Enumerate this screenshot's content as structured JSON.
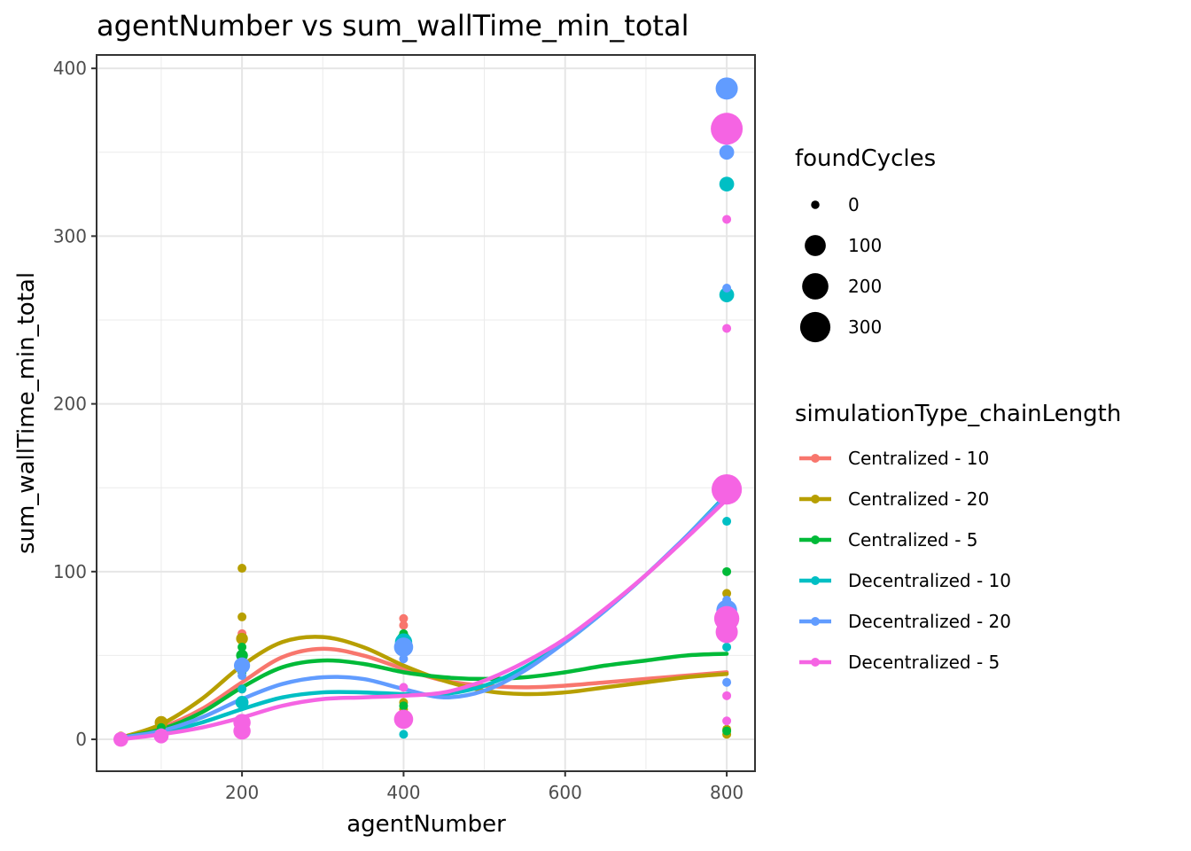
{
  "chart_data": {
    "type": "scatter",
    "title": "agentNumber  vs  sum_wallTime_min_total",
    "xlabel": "agentNumber",
    "ylabel": "sum_wallTime_min_total",
    "xlim": [
      20,
      835
    ],
    "ylim": [
      -19,
      408
    ],
    "x_ticks": [
      200,
      400,
      600,
      800
    ],
    "y_ticks": [
      0,
      100,
      200,
      300,
      400
    ],
    "x_tick_labels": [
      "200",
      "400",
      "600",
      "800"
    ],
    "y_tick_labels": [
      "0",
      "100",
      "200",
      "300",
      "400"
    ],
    "grid": true,
    "legend_position": "right",
    "size_legend": {
      "title": "foundCycles",
      "entries": [
        {
          "label": "0",
          "value": 0
        },
        {
          "label": "100",
          "value": 100
        },
        {
          "label": "200",
          "value": 200
        },
        {
          "label": "300",
          "value": 300
        }
      ]
    },
    "color_legend": {
      "title": "simulationType_chainLength"
    },
    "series": [
      {
        "name": "Centralized - 10",
        "color": "#F8766D",
        "points": [
          {
            "x": 50,
            "y": 1,
            "foundCycles": 0
          },
          {
            "x": 100,
            "y": 5,
            "foundCycles": 0
          },
          {
            "x": 200,
            "y": 63,
            "foundCycles": 0
          },
          {
            "x": 200,
            "y": 45,
            "foundCycles": 10
          },
          {
            "x": 200,
            "y": 30,
            "foundCycles": 0
          },
          {
            "x": 400,
            "y": 72,
            "foundCycles": 0
          },
          {
            "x": 400,
            "y": 68,
            "foundCycles": 0
          },
          {
            "x": 400,
            "y": 15,
            "foundCycles": 0
          },
          {
            "x": 800,
            "y": 65,
            "foundCycles": 0
          },
          {
            "x": 800,
            "y": 62,
            "foundCycles": 20
          }
        ],
        "trend": [
          [
            50,
            1
          ],
          [
            100,
            7
          ],
          [
            150,
            18
          ],
          [
            200,
            34
          ],
          [
            250,
            49
          ],
          [
            300,
            54
          ],
          [
            350,
            50
          ],
          [
            400,
            42
          ],
          [
            450,
            35
          ],
          [
            500,
            32
          ],
          [
            550,
            31
          ],
          [
            600,
            32
          ],
          [
            650,
            34
          ],
          [
            700,
            36
          ],
          [
            750,
            38
          ],
          [
            800,
            40
          ]
        ]
      },
      {
        "name": "Centralized - 20",
        "color": "#B79F00",
        "points": [
          {
            "x": 50,
            "y": 2,
            "foundCycles": 0
          },
          {
            "x": 100,
            "y": 10,
            "foundCycles": 10
          },
          {
            "x": 200,
            "y": 102,
            "foundCycles": 0
          },
          {
            "x": 200,
            "y": 73,
            "foundCycles": 0
          },
          {
            "x": 200,
            "y": 60,
            "foundCycles": 5
          },
          {
            "x": 400,
            "y": 22,
            "foundCycles": 0
          },
          {
            "x": 400,
            "y": 18,
            "foundCycles": 0
          },
          {
            "x": 800,
            "y": 87,
            "foundCycles": 0
          },
          {
            "x": 800,
            "y": 68,
            "foundCycles": 0
          },
          {
            "x": 800,
            "y": 6,
            "foundCycles": 0
          },
          {
            "x": 800,
            "y": 3,
            "foundCycles": 0
          }
        ],
        "trend": [
          [
            50,
            1
          ],
          [
            100,
            9
          ],
          [
            150,
            24
          ],
          [
            200,
            44
          ],
          [
            250,
            58
          ],
          [
            300,
            61
          ],
          [
            350,
            55
          ],
          [
            400,
            44
          ],
          [
            450,
            35
          ],
          [
            500,
            29
          ],
          [
            550,
            27
          ],
          [
            600,
            28
          ],
          [
            650,
            31
          ],
          [
            700,
            34
          ],
          [
            750,
            37
          ],
          [
            800,
            39
          ]
        ]
      },
      {
        "name": "Centralized - 5",
        "color": "#00BA38",
        "points": [
          {
            "x": 50,
            "y": 1,
            "foundCycles": 0
          },
          {
            "x": 100,
            "y": 7,
            "foundCycles": 0
          },
          {
            "x": 200,
            "y": 55,
            "foundCycles": 0
          },
          {
            "x": 200,
            "y": 50,
            "foundCycles": 5
          },
          {
            "x": 200,
            "y": 40,
            "foundCycles": 0
          },
          {
            "x": 400,
            "y": 63,
            "foundCycles": 0
          },
          {
            "x": 400,
            "y": 60,
            "foundCycles": 10
          },
          {
            "x": 400,
            "y": 20,
            "foundCycles": 0
          },
          {
            "x": 800,
            "y": 100,
            "foundCycles": 0
          },
          {
            "x": 800,
            "y": 67,
            "foundCycles": 40
          },
          {
            "x": 800,
            "y": 5,
            "foundCycles": 0
          }
        ],
        "trend": [
          [
            50,
            1
          ],
          [
            100,
            6
          ],
          [
            150,
            16
          ],
          [
            200,
            31
          ],
          [
            250,
            43
          ],
          [
            300,
            47
          ],
          [
            350,
            45
          ],
          [
            400,
            40
          ],
          [
            450,
            37
          ],
          [
            500,
            36
          ],
          [
            550,
            37
          ],
          [
            600,
            40
          ],
          [
            650,
            44
          ],
          [
            700,
            47
          ],
          [
            750,
            50
          ],
          [
            800,
            51
          ]
        ]
      },
      {
        "name": "Decentralized - 10",
        "color": "#00BFC4",
        "points": [
          {
            "x": 50,
            "y": 0,
            "foundCycles": 0
          },
          {
            "x": 100,
            "y": 4,
            "foundCycles": 0
          },
          {
            "x": 200,
            "y": 30,
            "foundCycles": 0
          },
          {
            "x": 200,
            "y": 22,
            "foundCycles": 10
          },
          {
            "x": 400,
            "y": 58,
            "foundCycles": 40
          },
          {
            "x": 400,
            "y": 10,
            "foundCycles": 0
          },
          {
            "x": 400,
            "y": 3,
            "foundCycles": 0
          },
          {
            "x": 800,
            "y": 368,
            "foundCycles": 20
          },
          {
            "x": 800,
            "y": 331,
            "foundCycles": 20
          },
          {
            "x": 800,
            "y": 265,
            "foundCycles": 20
          },
          {
            "x": 800,
            "y": 130,
            "foundCycles": 0
          },
          {
            "x": 800,
            "y": 68,
            "foundCycles": 60
          },
          {
            "x": 800,
            "y": 55,
            "foundCycles": 0
          }
        ],
        "trend": [
          [
            50,
            0
          ],
          [
            100,
            4
          ],
          [
            150,
            10
          ],
          [
            200,
            18
          ],
          [
            250,
            25
          ],
          [
            300,
            28
          ],
          [
            350,
            28
          ],
          [
            400,
            27
          ],
          [
            450,
            27
          ],
          [
            500,
            32
          ],
          [
            550,
            43
          ],
          [
            600,
            58
          ],
          [
            650,
            77
          ],
          [
            700,
            98
          ],
          [
            750,
            121
          ],
          [
            800,
            146
          ]
        ]
      },
      {
        "name": "Decentralized - 20",
        "color": "#619CFF",
        "points": [
          {
            "x": 50,
            "y": 1,
            "foundCycles": 0
          },
          {
            "x": 100,
            "y": 4,
            "foundCycles": 0
          },
          {
            "x": 200,
            "y": 44,
            "foundCycles": 30
          },
          {
            "x": 200,
            "y": 38,
            "foundCycles": 0
          },
          {
            "x": 400,
            "y": 55,
            "foundCycles": 60
          },
          {
            "x": 400,
            "y": 48,
            "foundCycles": 0
          },
          {
            "x": 800,
            "y": 388,
            "foundCycles": 100
          },
          {
            "x": 800,
            "y": 350,
            "foundCycles": 20
          },
          {
            "x": 800,
            "y": 269,
            "foundCycles": 0
          },
          {
            "x": 800,
            "y": 83,
            "foundCycles": 0
          },
          {
            "x": 800,
            "y": 77,
            "foundCycles": 80
          },
          {
            "x": 800,
            "y": 34,
            "foundCycles": 0
          }
        ],
        "trend": [
          [
            50,
            1
          ],
          [
            100,
            5
          ],
          [
            150,
            13
          ],
          [
            200,
            24
          ],
          [
            250,
            33
          ],
          [
            300,
            37
          ],
          [
            350,
            36
          ],
          [
            400,
            30
          ],
          [
            450,
            25
          ],
          [
            500,
            29
          ],
          [
            550,
            41
          ],
          [
            600,
            58
          ],
          [
            650,
            77
          ],
          [
            700,
            98
          ],
          [
            750,
            121
          ],
          [
            800,
            145
          ]
        ]
      },
      {
        "name": "Decentralized - 5",
        "color": "#F564E3",
        "points": [
          {
            "x": 50,
            "y": 0,
            "foundCycles": 20
          },
          {
            "x": 100,
            "y": 2,
            "foundCycles": 20
          },
          {
            "x": 200,
            "y": 10,
            "foundCycles": 40
          },
          {
            "x": 200,
            "y": 5,
            "foundCycles": 40
          },
          {
            "x": 400,
            "y": 31,
            "foundCycles": 0
          },
          {
            "x": 400,
            "y": 12,
            "foundCycles": 60
          },
          {
            "x": 800,
            "y": 364,
            "foundCycles": 300
          },
          {
            "x": 800,
            "y": 359,
            "foundCycles": 20
          },
          {
            "x": 800,
            "y": 310,
            "foundCycles": 0
          },
          {
            "x": 800,
            "y": 245,
            "foundCycles": 0
          },
          {
            "x": 800,
            "y": 149,
            "foundCycles": 260
          },
          {
            "x": 800,
            "y": 72,
            "foundCycles": 150
          },
          {
            "x": 800,
            "y": 64,
            "foundCycles": 100
          },
          {
            "x": 800,
            "y": 26,
            "foundCycles": 0
          },
          {
            "x": 800,
            "y": 11,
            "foundCycles": 0
          }
        ],
        "trend": [
          [
            50,
            0
          ],
          [
            100,
            3
          ],
          [
            150,
            7
          ],
          [
            200,
            13
          ],
          [
            250,
            20
          ],
          [
            300,
            24
          ],
          [
            350,
            25
          ],
          [
            400,
            26
          ],
          [
            450,
            28
          ],
          [
            500,
            35
          ],
          [
            550,
            46
          ],
          [
            600,
            60
          ],
          [
            650,
            78
          ],
          [
            700,
            98
          ],
          [
            750,
            120
          ],
          [
            800,
            143
          ]
        ]
      }
    ]
  }
}
